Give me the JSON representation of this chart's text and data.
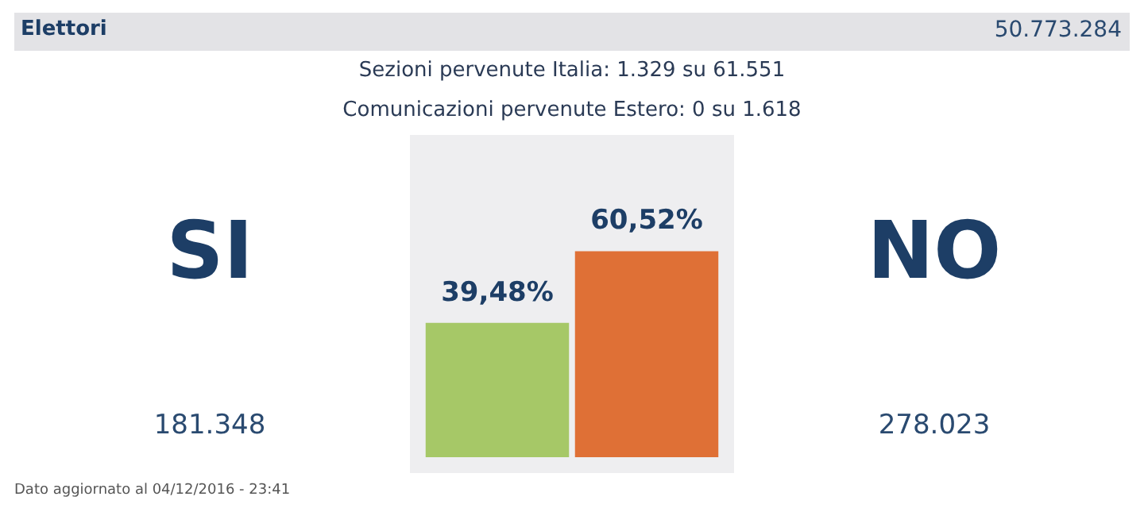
{
  "chart_data": {
    "type": "bar",
    "title": "Elettori",
    "categories": [
      "SI",
      "NO"
    ],
    "values": [
      39.48,
      60.52
    ],
    "colors": [
      "#a6c867",
      "#df7036"
    ],
    "value_labels": [
      "39,48%",
      "60,52%"
    ],
    "tick_labels": false,
    "annotations": [
      "50.773.284",
      "Sezioni pervenute Italia: 1.329 su 61.551",
      "Comunicazioni pervenute Estero: 0 su 1.618",
      "181.348",
      "278.023",
      "Dato aggiornato al 04/12/2016 - 23:41"
    ]
  }
}
